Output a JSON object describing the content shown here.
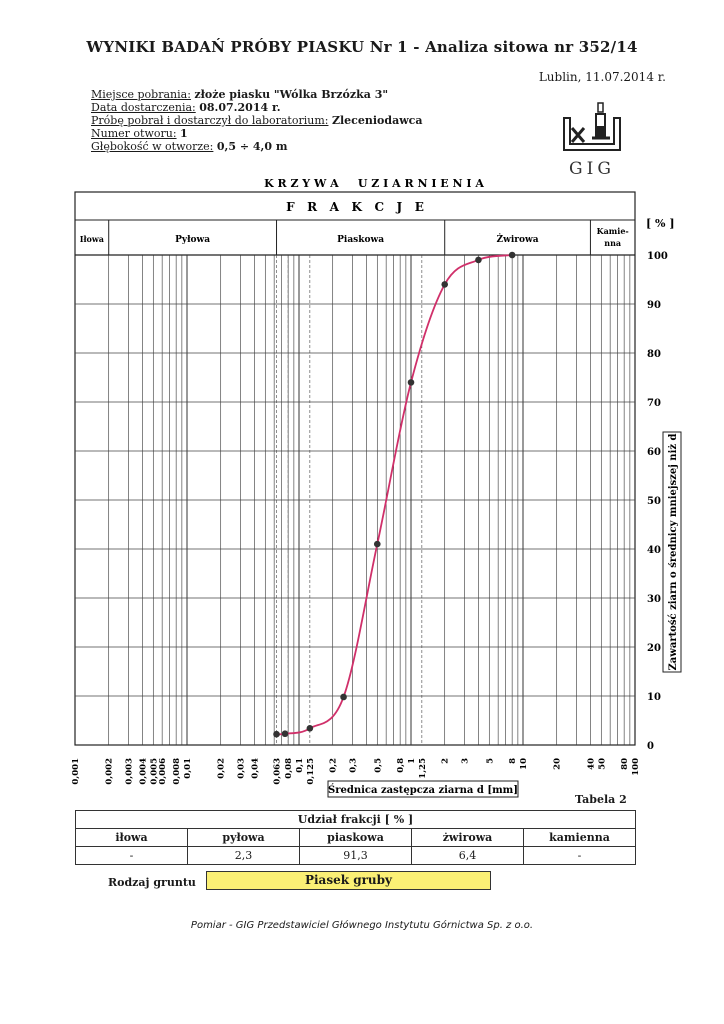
{
  "header": {
    "title": "WYNIKI BADAŃ PRÓBY PIASKU Nr 1 - Analiza sitowa nr 352/14",
    "place_date": "Lublin, 11.07.2014 r."
  },
  "meta": [
    {
      "label": "Miejsce pobrania:",
      "value": "złoże piasku \"Wólka Brzózka 3\""
    },
    {
      "label": "Data dostarczenia:",
      "value": "08.07.2014 r."
    },
    {
      "label": "Próbę pobrał i dostarczył do laboratorium:",
      "value": "Zleceniodawca"
    },
    {
      "label": "Numer otworu:",
      "value": "1"
    },
    {
      "label": "Głębokość w otworze:",
      "value": "0,5 ÷ 4,0 m"
    }
  ],
  "logo": {
    "text": "GIG"
  },
  "chart_data": {
    "type": "line",
    "title": "K R Z Y W A     U Z I A R N I E N I A",
    "fractions_header": "F   R   A   K   C   J   E",
    "fractions": [
      "Iłowa",
      "Pyłowa",
      "Piaskowa",
      "Żwirowa",
      "Kamie-nna"
    ],
    "fraction_bounds": [
      0.001,
      0.002,
      0.063,
      2,
      40,
      100
    ],
    "xlabel": "Średnica zastępcza ziarna d [mm]",
    "ylabel": "Zawartość ziarn o średnicy mniejszej niż d",
    "y_unit": "[ % ]",
    "x_scale": "log",
    "xlim": [
      0.001,
      100
    ],
    "ylim": [
      0,
      100
    ],
    "x_tick_labels": [
      "0,001",
      "0,002",
      "0,003",
      "0,004",
      "0,005",
      "0,006",
      "0,008",
      "0,01",
      "0,02",
      "0,03",
      "0,04",
      "0,063",
      "0,08",
      "0,1",
      "0,125",
      "0,2",
      "0,3",
      "0,5",
      "0,8",
      "1",
      "1,25",
      "2",
      "3",
      "5",
      "8",
      "10",
      "20",
      "40",
      "50",
      "80",
      "100"
    ],
    "y_ticks": [
      0,
      10,
      20,
      30,
      40,
      50,
      60,
      70,
      80,
      90,
      100
    ],
    "grid": true,
    "series": [
      {
        "points": [
          [
            0.063,
            2.2
          ],
          [
            0.075,
            2.3
          ],
          [
            0.125,
            3.4
          ],
          [
            0.25,
            9.8
          ],
          [
            0.5,
            41
          ],
          [
            1.0,
            74
          ],
          [
            2.0,
            94
          ],
          [
            4.0,
            99
          ],
          [
            8.0,
            100
          ]
        ]
      }
    ]
  },
  "table": {
    "label": "Tabela 2",
    "header": "Udział frakcji [ % ]",
    "columns": [
      "iłowa",
      "pyłowa",
      "piaskowa",
      "żwirowa",
      "kamienna"
    ],
    "values": [
      "-",
      "2,3",
      "91,3",
      "6,4",
      "-"
    ],
    "soil_label": "Rodzaj gruntu",
    "soil_value": "Piasek gruby"
  },
  "footer": "Pomiar - GIG Przedstawiciel Głównego Instytutu Górnictwa Sp. z o.o.",
  "colors": {
    "curve": "#d0306a",
    "soil_box": "#fbf075"
  }
}
